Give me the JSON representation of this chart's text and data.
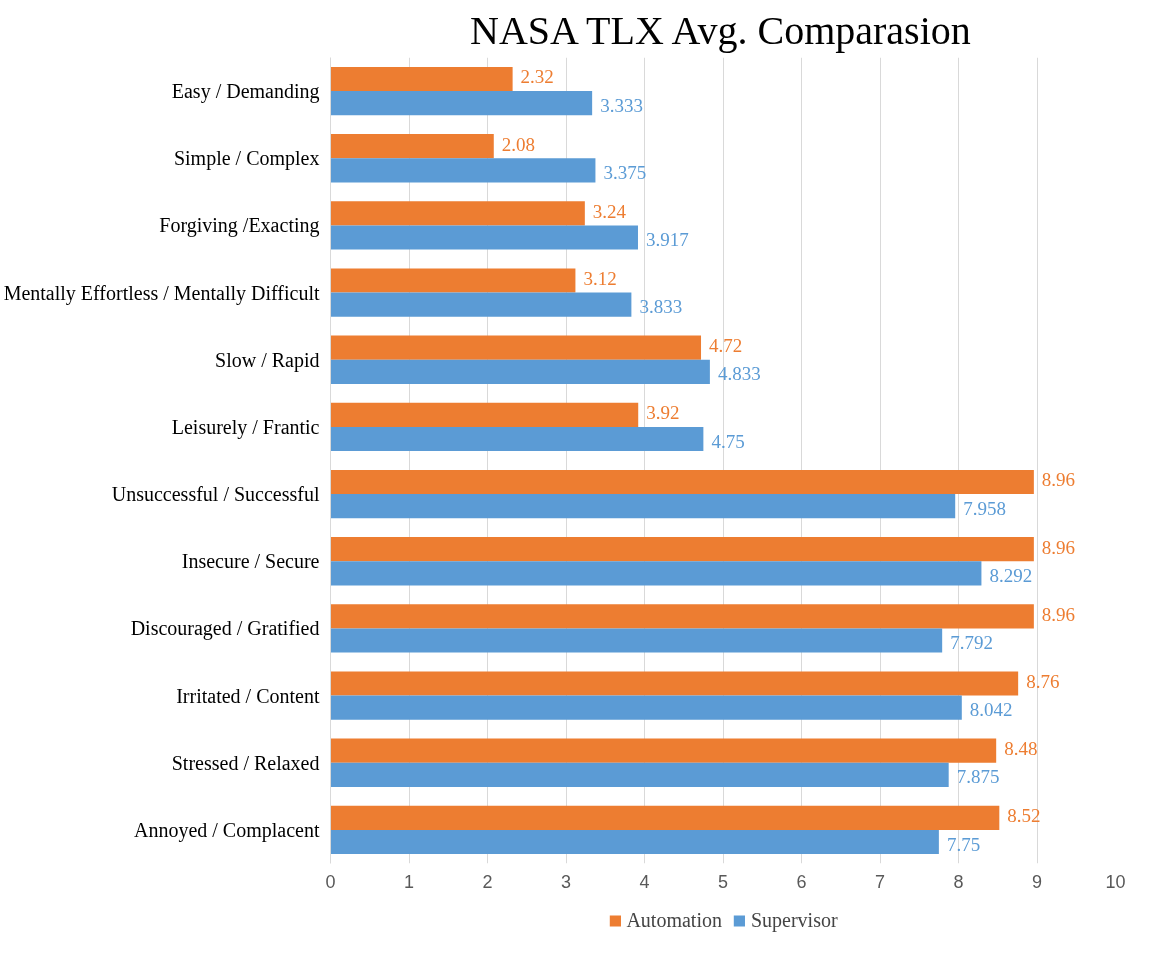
{
  "chart_data": {
    "type": "bar",
    "orientation": "horizontal",
    "title": "NASA TLX Avg. Comparasion",
    "categories": [
      "Easy / Demanding",
      "Simple / Complex",
      "Forgiving /Exacting",
      "Mentally Effortless / Mentally Difficult",
      "Slow / Rapid",
      "Leisurely / Frantic",
      "Unsuccessful / Successful",
      "Insecure / Secure",
      "Discouraged / Gratified",
      "Irritated / Content",
      "Stressed / Relaxed",
      "Annoyed / Complacent"
    ],
    "series": [
      {
        "name": "Automation",
        "color": "#ed7d31",
        "values": [
          2.32,
          2.08,
          3.24,
          3.12,
          4.72,
          3.92,
          8.96,
          8.96,
          8.96,
          8.76,
          8.48,
          8.52
        ]
      },
      {
        "name": "Supervisor",
        "color": "#5b9bd5",
        "values": [
          3.333,
          3.375,
          3.917,
          3.833,
          4.833,
          4.75,
          7.958,
          8.292,
          7.792,
          8.042,
          7.875,
          7.75
        ]
      }
    ],
    "xlim": [
      0,
      10
    ],
    "xticks": [
      0,
      1,
      2,
      3,
      4,
      5,
      6,
      7,
      8,
      9,
      10
    ],
    "grid": "x",
    "legend": "bottom",
    "data_labels": true
  }
}
